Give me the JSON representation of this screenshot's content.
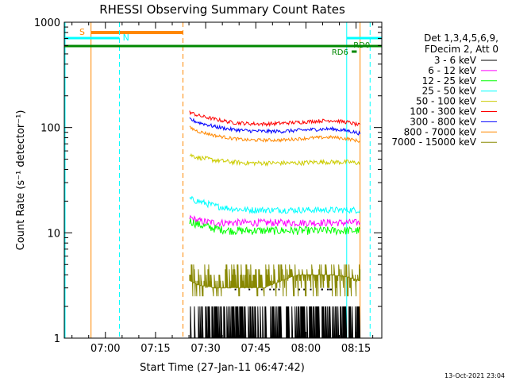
{
  "chart_data": {
    "type": "line",
    "title": "RHESSI Observing Summary Count Rates",
    "xlabel": "Start Time (27-Jan-11 06:47:42)",
    "ylabel": "Count Rate (s⁻¹ detector⁻¹)",
    "x_unit": "minutes after 06:47:42",
    "xlim": [
      0,
      95
    ],
    "x_ticks": [
      {
        "x": 12.3,
        "label": "07:00"
      },
      {
        "x": 27.3,
        "label": "07:15"
      },
      {
        "x": 42.3,
        "label": "07:30"
      },
      {
        "x": 57.3,
        "label": "07:45"
      },
      {
        "x": 72.3,
        "label": "08:00"
      },
      {
        "x": 87.3,
        "label": "08:15"
      }
    ],
    "yscale": "log",
    "ylim": [
      1,
      1000
    ],
    "y_ticks": [
      {
        "y": 1,
        "label": "1"
      },
      {
        "y": 10,
        "label": "10"
      },
      {
        "y": 100,
        "label": "100"
      },
      {
        "y": 1000,
        "label": "1000"
      }
    ],
    "legend_header": [
      "Det 1,3,4,5,6,9,",
      "FDecim 2, Att 0"
    ],
    "series": [
      {
        "name": "3 - 6 keV",
        "color": "#000000",
        "x": [
          37.5,
          40,
          45,
          50,
          55,
          60,
          65,
          70,
          75,
          80,
          85,
          88.5
        ],
        "values": [
          1.5,
          1.5,
          1.4,
          1.5,
          1.6,
          1.5,
          1.4,
          1.5,
          1.6,
          1.5,
          1.4,
          1.5
        ]
      },
      {
        "name": "6 - 12 keV",
        "color": "#ff00ff",
        "x": [
          37.5,
          40,
          45,
          50,
          55,
          60,
          65,
          70,
          75,
          80,
          85,
          88.5
        ],
        "values": [
          14,
          13,
          12.5,
          12.5,
          12.5,
          12.5,
          12.5,
          12.5,
          12.5,
          12.5,
          12.5,
          12.5
        ]
      },
      {
        "name": "12 - 25 keV",
        "color": "#00ff00",
        "x": [
          37.5,
          40,
          45,
          50,
          55,
          60,
          65,
          70,
          75,
          80,
          85,
          88.5
        ],
        "values": [
          13,
          12,
          11,
          10.5,
          10.5,
          10.5,
          10.5,
          10.5,
          10.5,
          10.5,
          10.5,
          10.5
        ]
      },
      {
        "name": "25 - 50 keV",
        "color": "#00ffff",
        "x": [
          37.5,
          40,
          45,
          50,
          55,
          60,
          65,
          70,
          75,
          80,
          85,
          88.5
        ],
        "values": [
          21,
          20,
          18,
          17,
          16.5,
          16.5,
          16.5,
          16.5,
          16.5,
          16.5,
          16.5,
          16.5
        ]
      },
      {
        "name": "50 - 100 keV",
        "color": "#cccc00",
        "x": [
          37.5,
          40,
          45,
          50,
          55,
          60,
          65,
          70,
          75,
          80,
          85,
          88.5
        ],
        "values": [
          55,
          52,
          49,
          47,
          46,
          46,
          46,
          46,
          47,
          47,
          47,
          46
        ]
      },
      {
        "name": "100 - 300 keV",
        "color": "#ff0000",
        "x": [
          37.5,
          40,
          45,
          50,
          55,
          60,
          65,
          70,
          75,
          80,
          85,
          88.5
        ],
        "values": [
          140,
          130,
          120,
          112,
          109,
          108,
          110,
          112,
          115,
          117,
          112,
          105
        ]
      },
      {
        "name": "300 - 800 keV",
        "color": "#0000ff",
        "x": [
          37.5,
          40,
          45,
          50,
          55,
          60,
          65,
          70,
          75,
          80,
          85,
          88.5
        ],
        "values": [
          120,
          112,
          102,
          96,
          93,
          92,
          92,
          94,
          96,
          97,
          93,
          88
        ]
      },
      {
        "name": "800 - 7000 keV",
        "color": "#ff8800",
        "x": [
          37.5,
          40,
          45,
          50,
          55,
          60,
          65,
          70,
          75,
          80,
          85,
          88.5
        ],
        "values": [
          100,
          92,
          84,
          79,
          76,
          76,
          76,
          78,
          80,
          81,
          78,
          74
        ]
      },
      {
        "name": "7000 - 15000 keV",
        "color": "#888800",
        "x": [
          37.5,
          40,
          45,
          50,
          55,
          60,
          65,
          70,
          75,
          80,
          85,
          88.5
        ],
        "values": [
          3.5,
          3.2,
          3,
          3,
          3,
          3,
          3.5,
          4,
          4,
          4,
          3.8,
          3.5
        ]
      }
    ],
    "annotations": [
      {
        "label": "S",
        "color": "#ff8800"
      },
      {
        "label": "N",
        "color": "#00ffff"
      },
      {
        "label": "RD0",
        "color": "#008800"
      },
      {
        "label": "RD6",
        "color": "#008800"
      }
    ]
  },
  "timestamp": "13-Oct-2021 23:04"
}
